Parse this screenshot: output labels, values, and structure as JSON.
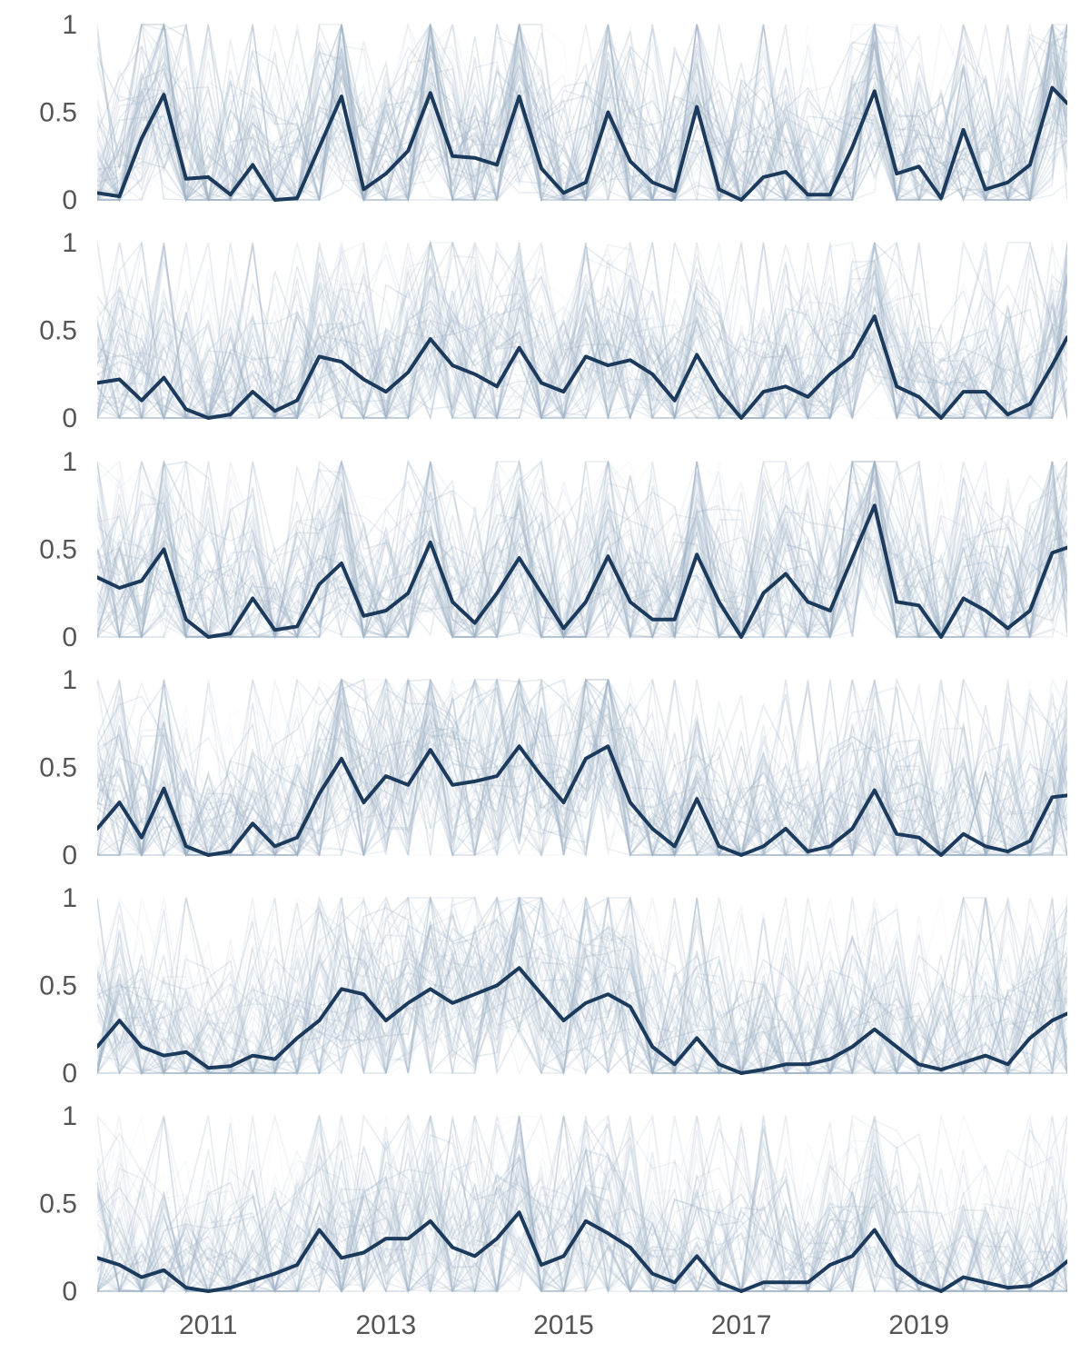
{
  "chart_data": {
    "type": "line",
    "layout": "small-multiples",
    "colors": {
      "mean": "#1b3a5c",
      "individual": "#9fb2c6"
    },
    "x_range": [
      2009.75,
      2020.67
    ],
    "x_ticks": [
      2011,
      2013,
      2015,
      2017,
      2019
    ],
    "x_tick_labels": [
      "2011",
      "2013",
      "2015",
      "2017",
      "2019"
    ],
    "ylim": [
      0,
      1
    ],
    "y_ticks": [
      0,
      0.5,
      1
    ],
    "y_tick_labels": [
      "0",
      "0.5",
      "1"
    ],
    "grid": false,
    "legend": "none",
    "panels": [
      {
        "series": [
          {
            "role": "mean",
            "x": [
              2009.75,
              2010.0,
              2010.25,
              2010.5,
              2010.75,
              2011.0,
              2011.25,
              2011.5,
              2011.75,
              2012.0,
              2012.25,
              2012.5,
              2012.75,
              2013.0,
              2013.25,
              2013.5,
              2013.75,
              2014.0,
              2014.25,
              2014.5,
              2014.75,
              2015.0,
              2015.25,
              2015.5,
              2015.75,
              2016.0,
              2016.25,
              2016.5,
              2016.75,
              2017.0,
              2017.25,
              2017.5,
              2017.75,
              2018.0,
              2018.25,
              2018.5,
              2018.75,
              2019.0,
              2019.25,
              2019.5,
              2019.75,
              2020.0,
              2020.25,
              2020.5,
              2020.67
            ],
            "values": [
              0.04,
              0.02,
              0.35,
              0.6,
              0.12,
              0.13,
              0.03,
              0.2,
              0.0,
              0.01,
              0.3,
              0.59,
              0.06,
              0.15,
              0.28,
              0.61,
              0.25,
              0.24,
              0.2,
              0.59,
              0.18,
              0.04,
              0.1,
              0.5,
              0.22,
              0.1,
              0.05,
              0.53,
              0.06,
              0.0,
              0.13,
              0.16,
              0.03,
              0.03,
              0.3,
              0.62,
              0.15,
              0.19,
              0.01,
              0.4,
              0.06,
              0.1,
              0.2,
              0.64,
              0.55
            ]
          }
        ]
      },
      {
        "series": [
          {
            "role": "mean",
            "x": [
              2009.75,
              2010.0,
              2010.25,
              2010.5,
              2010.75,
              2011.0,
              2011.25,
              2011.5,
              2011.75,
              2012.0,
              2012.25,
              2012.5,
              2012.75,
              2013.0,
              2013.25,
              2013.5,
              2013.75,
              2014.0,
              2014.25,
              2014.5,
              2014.75,
              2015.0,
              2015.25,
              2015.5,
              2015.75,
              2016.0,
              2016.25,
              2016.5,
              2016.75,
              2017.0,
              2017.25,
              2017.5,
              2017.75,
              2018.0,
              2018.25,
              2018.5,
              2018.75,
              2019.0,
              2019.25,
              2019.5,
              2019.75,
              2020.0,
              2020.25,
              2020.5,
              2020.67
            ],
            "values": [
              0.2,
              0.22,
              0.1,
              0.23,
              0.05,
              0.0,
              0.02,
              0.15,
              0.04,
              0.1,
              0.35,
              0.32,
              0.22,
              0.15,
              0.26,
              0.45,
              0.3,
              0.25,
              0.18,
              0.4,
              0.2,
              0.15,
              0.35,
              0.3,
              0.33,
              0.25,
              0.1,
              0.36,
              0.15,
              0.0,
              0.15,
              0.18,
              0.12,
              0.25,
              0.35,
              0.58,
              0.18,
              0.12,
              0.0,
              0.15,
              0.15,
              0.02,
              0.08,
              0.3,
              0.46
            ]
          }
        ]
      },
      {
        "series": [
          {
            "role": "mean",
            "x": [
              2009.75,
              2010.0,
              2010.25,
              2010.5,
              2010.75,
              2011.0,
              2011.25,
              2011.5,
              2011.75,
              2012.0,
              2012.25,
              2012.5,
              2012.75,
              2013.0,
              2013.25,
              2013.5,
              2013.75,
              2014.0,
              2014.25,
              2014.5,
              2014.75,
              2015.0,
              2015.25,
              2015.5,
              2015.75,
              2016.0,
              2016.25,
              2016.5,
              2016.75,
              2017.0,
              2017.25,
              2017.5,
              2017.75,
              2018.0,
              2018.25,
              2018.5,
              2018.75,
              2019.0,
              2019.25,
              2019.5,
              2019.75,
              2020.0,
              2020.25,
              2020.5,
              2020.67
            ],
            "values": [
              0.34,
              0.28,
              0.32,
              0.5,
              0.1,
              0.0,
              0.02,
              0.22,
              0.04,
              0.06,
              0.3,
              0.42,
              0.12,
              0.15,
              0.25,
              0.54,
              0.2,
              0.08,
              0.25,
              0.45,
              0.25,
              0.05,
              0.2,
              0.46,
              0.2,
              0.1,
              0.1,
              0.47,
              0.2,
              0.0,
              0.25,
              0.36,
              0.2,
              0.15,
              0.45,
              0.75,
              0.2,
              0.18,
              0.0,
              0.22,
              0.15,
              0.05,
              0.15,
              0.48,
              0.51
            ]
          }
        ]
      },
      {
        "series": [
          {
            "role": "mean",
            "x": [
              2009.75,
              2010.0,
              2010.25,
              2010.5,
              2010.75,
              2011.0,
              2011.25,
              2011.5,
              2011.75,
              2012.0,
              2012.25,
              2012.5,
              2012.75,
              2013.0,
              2013.25,
              2013.5,
              2013.75,
              2014.0,
              2014.25,
              2014.5,
              2014.75,
              2015.0,
              2015.25,
              2015.5,
              2015.75,
              2016.0,
              2016.25,
              2016.5,
              2016.75,
              2017.0,
              2017.25,
              2017.5,
              2017.75,
              2018.0,
              2018.25,
              2018.5,
              2018.75,
              2019.0,
              2019.25,
              2019.5,
              2019.75,
              2020.0,
              2020.25,
              2020.5,
              2020.67
            ],
            "values": [
              0.15,
              0.3,
              0.1,
              0.38,
              0.05,
              0.0,
              0.02,
              0.18,
              0.05,
              0.1,
              0.35,
              0.55,
              0.3,
              0.45,
              0.4,
              0.6,
              0.4,
              0.42,
              0.45,
              0.62,
              0.45,
              0.3,
              0.55,
              0.62,
              0.3,
              0.15,
              0.05,
              0.32,
              0.05,
              0.0,
              0.05,
              0.15,
              0.02,
              0.05,
              0.15,
              0.37,
              0.12,
              0.1,
              0.0,
              0.12,
              0.05,
              0.02,
              0.08,
              0.33,
              0.34
            ]
          }
        ]
      },
      {
        "series": [
          {
            "role": "mean",
            "x": [
              2009.75,
              2010.0,
              2010.25,
              2010.5,
              2010.75,
              2011.0,
              2011.25,
              2011.5,
              2011.75,
              2012.0,
              2012.25,
              2012.5,
              2012.75,
              2013.0,
              2013.25,
              2013.5,
              2013.75,
              2014.0,
              2014.25,
              2014.5,
              2014.75,
              2015.0,
              2015.25,
              2015.5,
              2015.75,
              2016.0,
              2016.25,
              2016.5,
              2016.75,
              2017.0,
              2017.25,
              2017.5,
              2017.75,
              2018.0,
              2018.25,
              2018.5,
              2018.75,
              2019.0,
              2019.25,
              2019.5,
              2019.75,
              2020.0,
              2020.25,
              2020.5,
              2020.67
            ],
            "values": [
              0.15,
              0.3,
              0.15,
              0.1,
              0.12,
              0.03,
              0.04,
              0.1,
              0.08,
              0.2,
              0.3,
              0.48,
              0.45,
              0.3,
              0.4,
              0.48,
              0.4,
              0.45,
              0.5,
              0.6,
              0.45,
              0.3,
              0.4,
              0.45,
              0.38,
              0.15,
              0.05,
              0.2,
              0.05,
              0.0,
              0.02,
              0.05,
              0.05,
              0.08,
              0.15,
              0.25,
              0.15,
              0.05,
              0.02,
              0.06,
              0.1,
              0.05,
              0.2,
              0.3,
              0.34
            ]
          }
        ]
      },
      {
        "series": [
          {
            "role": "mean",
            "x": [
              2009.75,
              2010.0,
              2010.25,
              2010.5,
              2010.75,
              2011.0,
              2011.25,
              2011.5,
              2011.75,
              2012.0,
              2012.25,
              2012.5,
              2012.75,
              2013.0,
              2013.25,
              2013.5,
              2013.75,
              2014.0,
              2014.25,
              2014.5,
              2014.75,
              2015.0,
              2015.25,
              2015.5,
              2015.75,
              2016.0,
              2016.25,
              2016.5,
              2016.75,
              2017.0,
              2017.25,
              2017.5,
              2017.75,
              2018.0,
              2018.25,
              2018.5,
              2018.75,
              2019.0,
              2019.25,
              2019.5,
              2019.75,
              2020.0,
              2020.25,
              2020.5,
              2020.67
            ],
            "values": [
              0.19,
              0.15,
              0.08,
              0.12,
              0.02,
              0.0,
              0.02,
              0.06,
              0.1,
              0.15,
              0.35,
              0.19,
              0.22,
              0.3,
              0.3,
              0.4,
              0.25,
              0.2,
              0.3,
              0.45,
              0.15,
              0.2,
              0.4,
              0.33,
              0.25,
              0.1,
              0.05,
              0.2,
              0.05,
              0.0,
              0.05,
              0.05,
              0.05,
              0.15,
              0.2,
              0.35,
              0.15,
              0.05,
              0.0,
              0.08,
              0.05,
              0.02,
              0.03,
              0.1,
              0.17
            ]
          }
        ]
      }
    ]
  }
}
